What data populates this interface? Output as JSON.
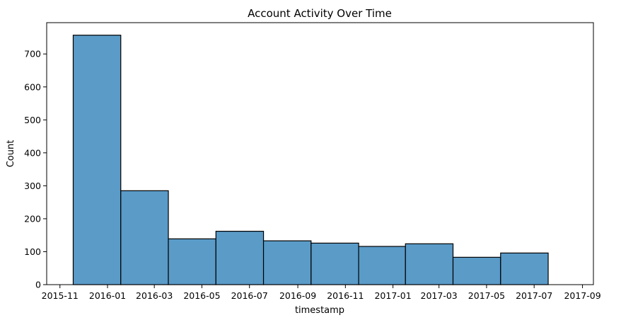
{
  "chart_data": {
    "type": "bar",
    "title": "Account Activity Over Time",
    "xlabel": "timestamp",
    "ylabel": "Count",
    "x_axis": {
      "scale": "date",
      "range": [
        "2015-10-15",
        "2017-09-15"
      ],
      "ticks": [
        "2015-11-01",
        "2016-01-01",
        "2016-03-01",
        "2016-05-01",
        "2016-07-01",
        "2016-09-01",
        "2016-11-01",
        "2017-01-01",
        "2017-03-01",
        "2017-05-01",
        "2017-07-01",
        "2017-09-01"
      ],
      "tick_labels": [
        "2015-11",
        "2016-01",
        "2016-03",
        "2016-05",
        "2016-07",
        "2016-09",
        "2016-11",
        "2017-01",
        "2017-03",
        "2017-05",
        "2017-07",
        "2017-09"
      ]
    },
    "y_axis": {
      "range": [
        0,
        795
      ],
      "ticks": [
        0,
        100,
        200,
        300,
        400,
        500,
        600,
        700
      ],
      "tick_labels": [
        "0",
        "100",
        "200",
        "300",
        "400",
        "500",
        "600",
        "700"
      ]
    },
    "bins": [
      {
        "start": "2015-11-18",
        "end": "2016-01-18",
        "count": 757
      },
      {
        "start": "2016-01-18",
        "end": "2016-03-19",
        "count": 285
      },
      {
        "start": "2016-03-19",
        "end": "2016-05-19",
        "count": 139
      },
      {
        "start": "2016-05-19",
        "end": "2016-07-19",
        "count": 162
      },
      {
        "start": "2016-07-19",
        "end": "2016-09-18",
        "count": 133
      },
      {
        "start": "2016-09-18",
        "end": "2016-11-18",
        "count": 126
      },
      {
        "start": "2016-11-18",
        "end": "2017-01-17",
        "count": 116
      },
      {
        "start": "2017-01-17",
        "end": "2017-03-19",
        "count": 124
      },
      {
        "start": "2017-03-19",
        "end": "2017-05-19",
        "count": 83
      },
      {
        "start": "2017-05-19",
        "end": "2017-07-19",
        "count": 96
      }
    ],
    "grid": false,
    "legend": "none",
    "colors": {
      "bar_fill": "#5a9bc8",
      "bar_edge": "#000000"
    }
  }
}
